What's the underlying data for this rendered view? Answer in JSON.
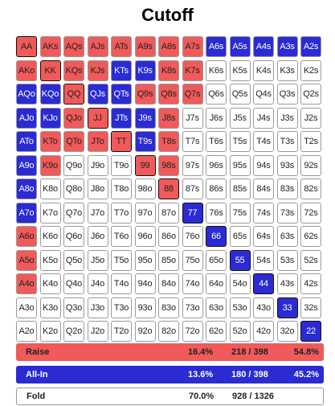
{
  "title": "Cutoff",
  "colors": {
    "raise": "#f05a5a",
    "allin": "#2b2bd4",
    "fold": "#ffffff"
  },
  "grid": [
    [
      [
        "AA",
        "raise"
      ],
      [
        "AKs",
        "raise"
      ],
      [
        "AQs",
        "raise"
      ],
      [
        "AJs",
        "raise"
      ],
      [
        "ATs",
        "raise"
      ],
      [
        "A9s",
        "raise"
      ],
      [
        "A8s",
        "raise"
      ],
      [
        "A7s",
        "raise"
      ],
      [
        "A6s",
        "allin"
      ],
      [
        "A5s",
        "allin"
      ],
      [
        "A4s",
        "allin"
      ],
      [
        "A3s",
        "allin"
      ],
      [
        "A2s",
        "allin"
      ]
    ],
    [
      [
        "AKo",
        "raise"
      ],
      [
        "KK",
        "raise"
      ],
      [
        "KQs",
        "raise"
      ],
      [
        "KJs",
        "raise"
      ],
      [
        "KTs",
        "allin"
      ],
      [
        "K9s",
        "allin"
      ],
      [
        "K8s",
        "raise"
      ],
      [
        "K7s",
        "raise"
      ],
      [
        "K6s",
        "fold"
      ],
      [
        "K5s",
        "fold"
      ],
      [
        "K4s",
        "fold"
      ],
      [
        "K3s",
        "fold"
      ],
      [
        "K2s",
        "fold"
      ]
    ],
    [
      [
        "AQo",
        "allin"
      ],
      [
        "KQo",
        "allin"
      ],
      [
        "QQ",
        "raise"
      ],
      [
        "QJs",
        "allin"
      ],
      [
        "QTs",
        "allin"
      ],
      [
        "Q9s",
        "raise"
      ],
      [
        "Q8s",
        "raise"
      ],
      [
        "Q7s",
        "raise"
      ],
      [
        "Q6s",
        "fold"
      ],
      [
        "Q5s",
        "fold"
      ],
      [
        "Q4s",
        "fold"
      ],
      [
        "Q3s",
        "fold"
      ],
      [
        "Q2s",
        "fold"
      ]
    ],
    [
      [
        "AJo",
        "allin"
      ],
      [
        "KJo",
        "allin"
      ],
      [
        "QJo",
        "raise"
      ],
      [
        "JJ",
        "raise"
      ],
      [
        "JTs",
        "allin"
      ],
      [
        "J9s",
        "allin"
      ],
      [
        "J8s",
        "raise"
      ],
      [
        "J7s",
        "fold"
      ],
      [
        "J6s",
        "fold"
      ],
      [
        "J5s",
        "fold"
      ],
      [
        "J4s",
        "fold"
      ],
      [
        "J3s",
        "fold"
      ],
      [
        "J2s",
        "fold"
      ]
    ],
    [
      [
        "ATo",
        "allin"
      ],
      [
        "KTo",
        "raise"
      ],
      [
        "QTo",
        "raise"
      ],
      [
        "JTo",
        "raise"
      ],
      [
        "TT",
        "raise"
      ],
      [
        "T9s",
        "allin"
      ],
      [
        "T8s",
        "raise"
      ],
      [
        "T7s",
        "fold"
      ],
      [
        "T6s",
        "fold"
      ],
      [
        "T5s",
        "fold"
      ],
      [
        "T4s",
        "fold"
      ],
      [
        "T3s",
        "fold"
      ],
      [
        "T2s",
        "fold"
      ]
    ],
    [
      [
        "A9o",
        "allin"
      ],
      [
        "K9o",
        "raise"
      ],
      [
        "Q9o",
        "fold"
      ],
      [
        "J9o",
        "fold"
      ],
      [
        "T9o",
        "fold"
      ],
      [
        "99",
        "raise"
      ],
      [
        "98s",
        "raise"
      ],
      [
        "97s",
        "fold"
      ],
      [
        "96s",
        "fold"
      ],
      [
        "95s",
        "fold"
      ],
      [
        "94s",
        "fold"
      ],
      [
        "93s",
        "fold"
      ],
      [
        "92s",
        "fold"
      ]
    ],
    [
      [
        "A8o",
        "allin"
      ],
      [
        "K8o",
        "fold"
      ],
      [
        "Q8o",
        "fold"
      ],
      [
        "J8o",
        "fold"
      ],
      [
        "T8o",
        "fold"
      ],
      [
        "98o",
        "fold"
      ],
      [
        "88",
        "raise"
      ],
      [
        "87s",
        "fold"
      ],
      [
        "86s",
        "fold"
      ],
      [
        "85s",
        "fold"
      ],
      [
        "84s",
        "fold"
      ],
      [
        "83s",
        "fold"
      ],
      [
        "82s",
        "fold"
      ]
    ],
    [
      [
        "A7o",
        "allin"
      ],
      [
        "K7o",
        "fold"
      ],
      [
        "Q7o",
        "fold"
      ],
      [
        "J7o",
        "fold"
      ],
      [
        "T7o",
        "fold"
      ],
      [
        "97o",
        "fold"
      ],
      [
        "87o",
        "fold"
      ],
      [
        "77",
        "allin"
      ],
      [
        "76s",
        "fold"
      ],
      [
        "75s",
        "fold"
      ],
      [
        "74s",
        "fold"
      ],
      [
        "73s",
        "fold"
      ],
      [
        "72s",
        "fold"
      ]
    ],
    [
      [
        "A6o",
        "raise"
      ],
      [
        "K6o",
        "fold"
      ],
      [
        "Q6o",
        "fold"
      ],
      [
        "J6o",
        "fold"
      ],
      [
        "T6o",
        "fold"
      ],
      [
        "96o",
        "fold"
      ],
      [
        "86o",
        "fold"
      ],
      [
        "76o",
        "fold"
      ],
      [
        "66",
        "allin"
      ],
      [
        "65s",
        "fold"
      ],
      [
        "64s",
        "fold"
      ],
      [
        "63s",
        "fold"
      ],
      [
        "62s",
        "fold"
      ]
    ],
    [
      [
        "A5o",
        "raise"
      ],
      [
        "K5o",
        "fold"
      ],
      [
        "Q5o",
        "fold"
      ],
      [
        "J5o",
        "fold"
      ],
      [
        "T5o",
        "fold"
      ],
      [
        "95o",
        "fold"
      ],
      [
        "85o",
        "fold"
      ],
      [
        "75o",
        "fold"
      ],
      [
        "65o",
        "fold"
      ],
      [
        "55",
        "allin"
      ],
      [
        "54s",
        "fold"
      ],
      [
        "53s",
        "fold"
      ],
      [
        "52s",
        "fold"
      ]
    ],
    [
      [
        "A4o",
        "raise"
      ],
      [
        "K4o",
        "fold"
      ],
      [
        "Q4o",
        "fold"
      ],
      [
        "J4o",
        "fold"
      ],
      [
        "T4o",
        "fold"
      ],
      [
        "94o",
        "fold"
      ],
      [
        "84o",
        "fold"
      ],
      [
        "74o",
        "fold"
      ],
      [
        "64o",
        "fold"
      ],
      [
        "54o",
        "fold"
      ],
      [
        "44",
        "allin"
      ],
      [
        "43s",
        "fold"
      ],
      [
        "42s",
        "fold"
      ]
    ],
    [
      [
        "A3o",
        "fold"
      ],
      [
        "K3o",
        "fold"
      ],
      [
        "Q3o",
        "fold"
      ],
      [
        "J3o",
        "fold"
      ],
      [
        "T3o",
        "fold"
      ],
      [
        "93o",
        "fold"
      ],
      [
        "83o",
        "fold"
      ],
      [
        "73o",
        "fold"
      ],
      [
        "63o",
        "fold"
      ],
      [
        "53o",
        "fold"
      ],
      [
        "43o",
        "fold"
      ],
      [
        "33",
        "allin"
      ],
      [
        "32s",
        "fold"
      ]
    ],
    [
      [
        "A2o",
        "fold"
      ],
      [
        "K2o",
        "fold"
      ],
      [
        "Q2o",
        "fold"
      ],
      [
        "J2o",
        "fold"
      ],
      [
        "T2o",
        "fold"
      ],
      [
        "92o",
        "fold"
      ],
      [
        "82o",
        "fold"
      ],
      [
        "72o",
        "fold"
      ],
      [
        "62o",
        "fold"
      ],
      [
        "52o",
        "fold"
      ],
      [
        "42o",
        "fold"
      ],
      [
        "32o",
        "fold"
      ],
      [
        "22",
        "allin"
      ]
    ]
  ],
  "summary": {
    "raise": {
      "label": "Raise",
      "pct": "16.4%",
      "combos": "218 / 398",
      "share": "54.8%"
    },
    "allin": {
      "label": "All-In",
      "pct": "13.6%",
      "combos": "180 / 398",
      "share": "45.2%"
    },
    "fold": {
      "label": "Fold",
      "pct": "70.0%",
      "combos": "928 / 1326",
      "share": ""
    }
  }
}
